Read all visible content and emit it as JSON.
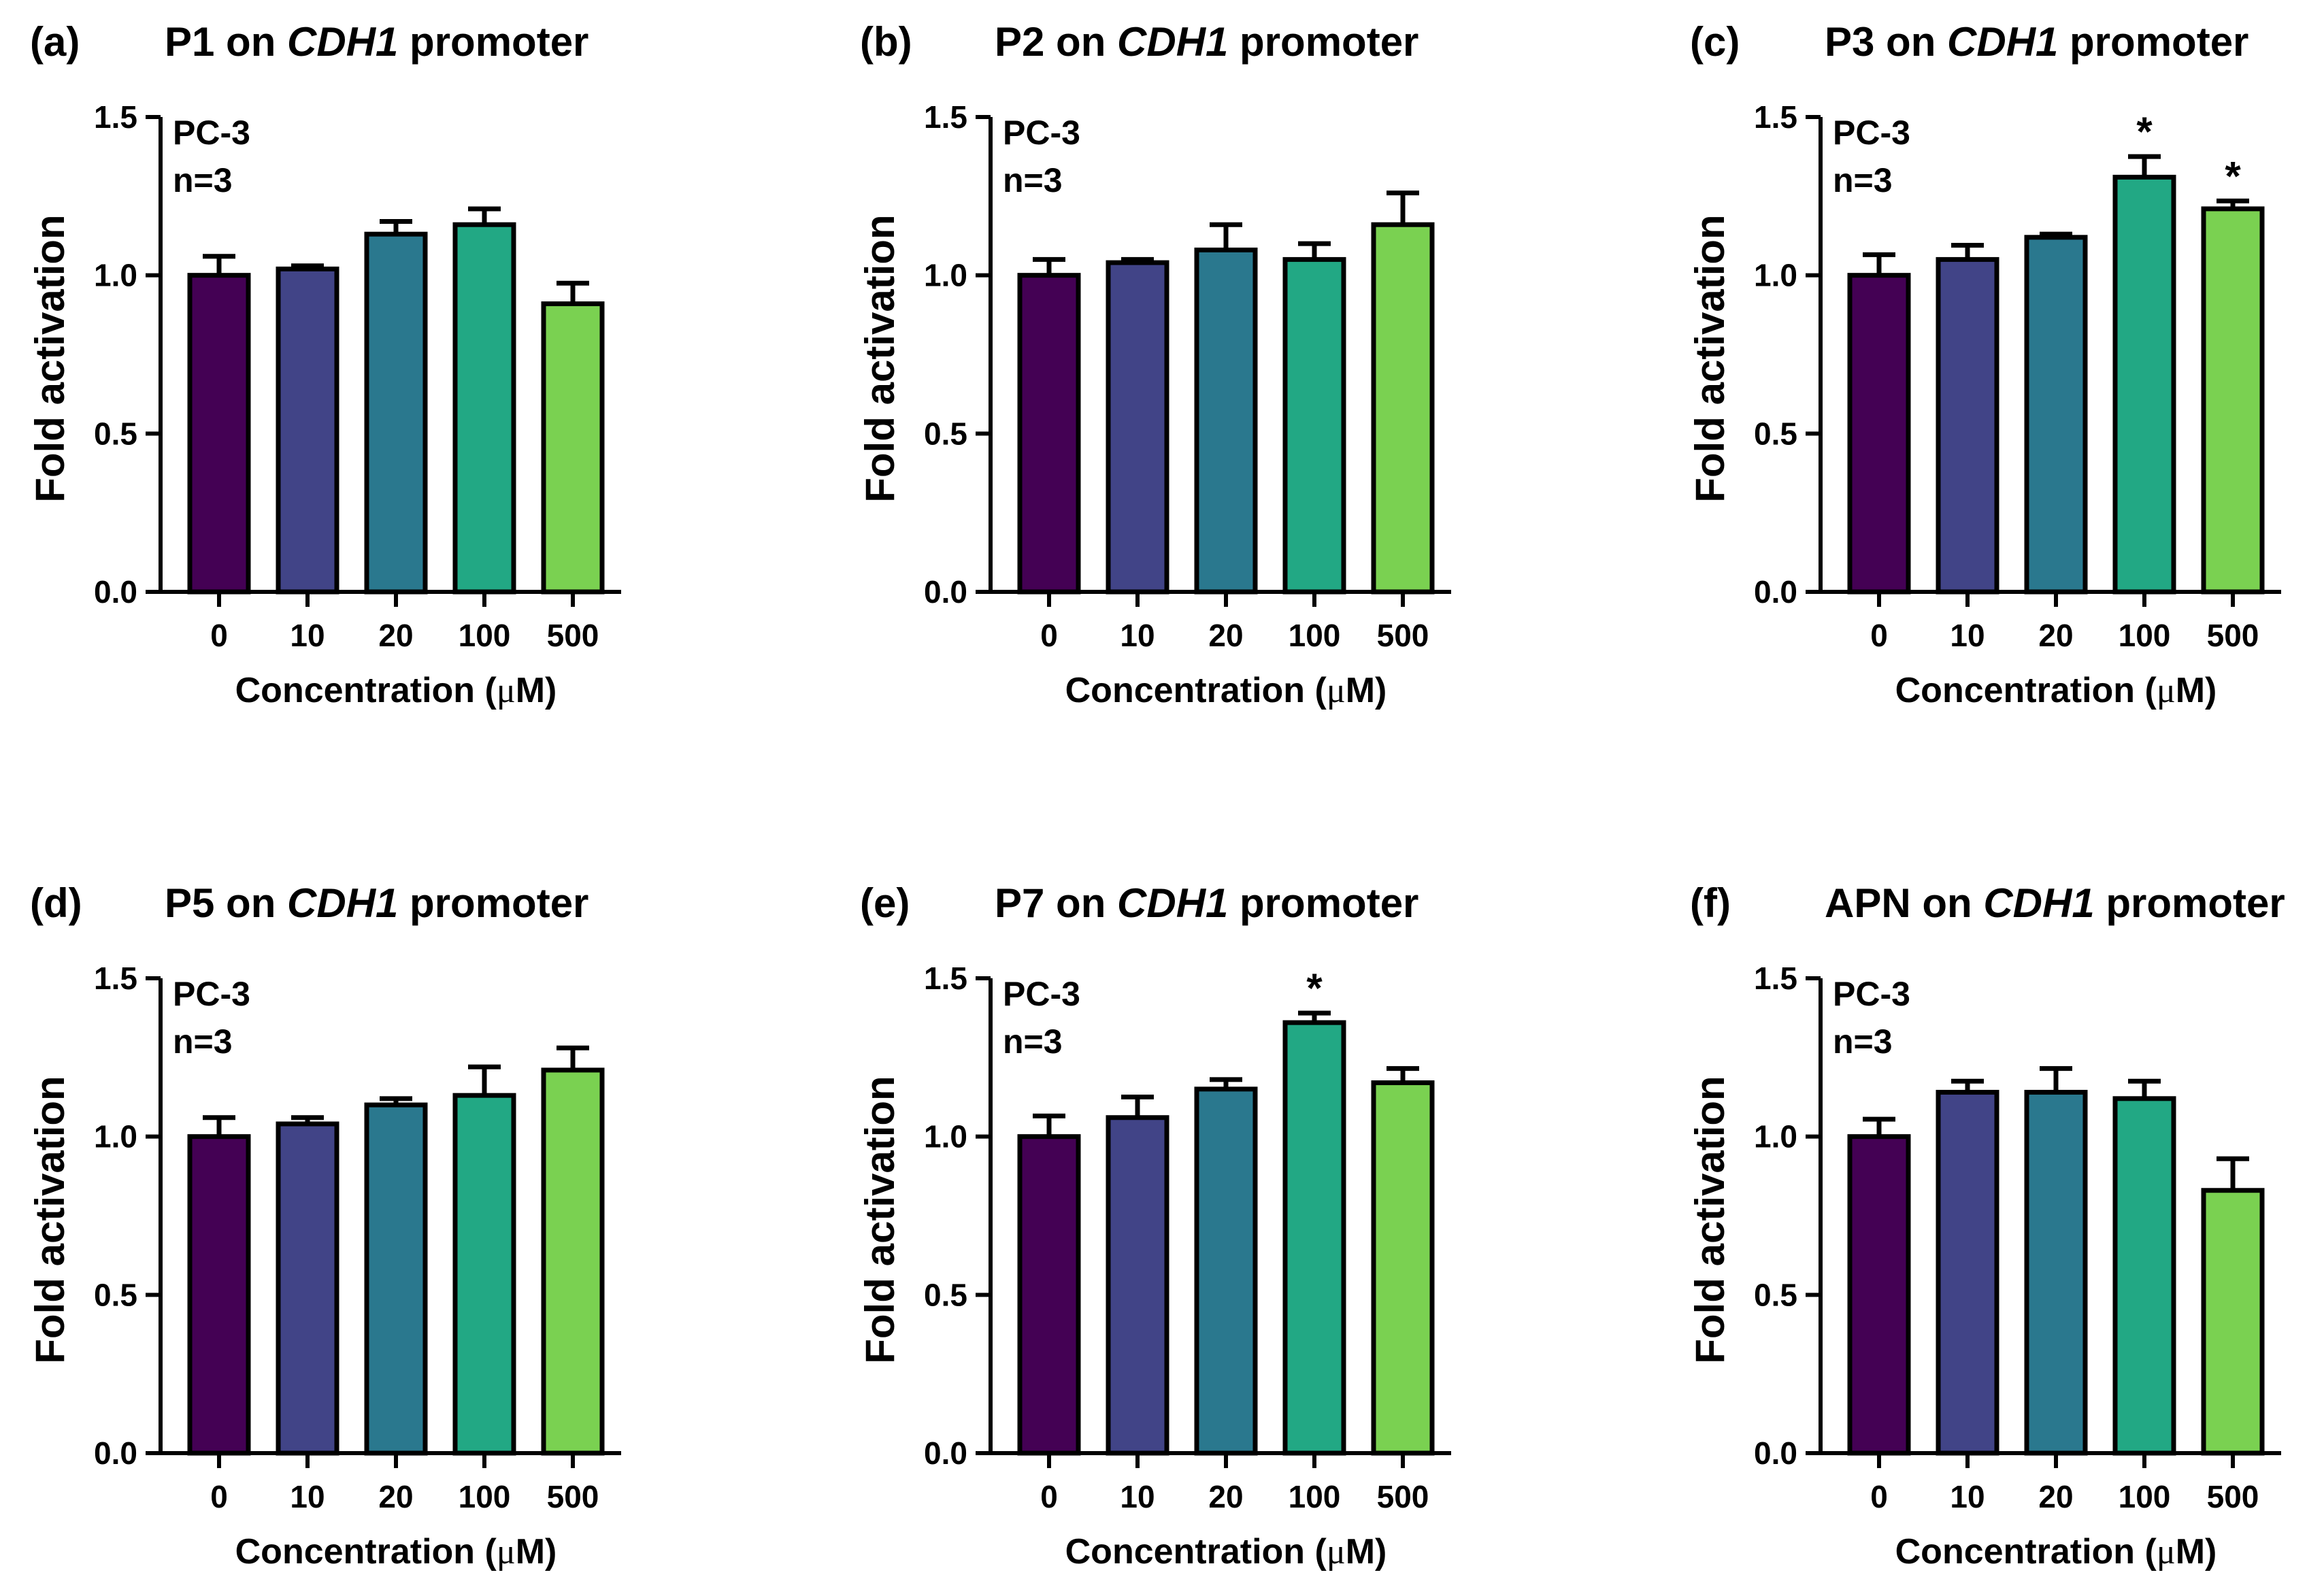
{
  "chart_data": [
    {
      "panel": "(a)",
      "title": {
        "pre": "P1 on ",
        "gene": "CDH1",
        "post": " promoter"
      },
      "type": "bar",
      "categories": [
        "0",
        "10",
        "20",
        "100",
        "500"
      ],
      "values": [
        1.0,
        1.02,
        1.13,
        1.16,
        0.91
      ],
      "errors": [
        0.06,
        0.01,
        0.04,
        0.05,
        0.065
      ],
      "significance": [
        "",
        "",
        "",
        "",
        ""
      ],
      "cell_line": "PC-3",
      "n_label": "n=3",
      "xlabel": {
        "pre": "Concentration (",
        "mu": "μ",
        "post": "M)"
      },
      "ylabel": "Fold activation",
      "ylim": [
        0,
        1.5
      ],
      "yticks": [
        "0.0",
        "0.5",
        "1.0",
        "1.5"
      ]
    },
    {
      "panel": "(b)",
      "title": {
        "pre": "P2 on ",
        "gene": "CDH1",
        "post": " promoter"
      },
      "type": "bar",
      "categories": [
        "0",
        "10",
        "20",
        "100",
        "500"
      ],
      "values": [
        1.0,
        1.04,
        1.08,
        1.05,
        1.16
      ],
      "errors": [
        0.05,
        0.01,
        0.08,
        0.05,
        0.1
      ],
      "significance": [
        "",
        "",
        "",
        "",
        ""
      ],
      "cell_line": "PC-3",
      "n_label": "n=3",
      "xlabel": {
        "pre": "Concentration (",
        "mu": "μ",
        "post": "M)"
      },
      "ylabel": "Fold activation",
      "ylim": [
        0,
        1.5
      ],
      "yticks": [
        "0.0",
        "0.5",
        "1.0",
        "1.5"
      ]
    },
    {
      "panel": "(c)",
      "title": {
        "pre": "P3 on ",
        "gene": "CDH1",
        "post": " promoter"
      },
      "type": "bar",
      "categories": [
        "0",
        "10",
        "20",
        "100",
        "500"
      ],
      "values": [
        1.0,
        1.05,
        1.12,
        1.31,
        1.21
      ],
      "errors": [
        0.065,
        0.045,
        0.01,
        0.065,
        0.025
      ],
      "significance": [
        "",
        "",
        "",
        "*",
        "*"
      ],
      "cell_line": "PC-3",
      "n_label": "n=3",
      "xlabel": {
        "pre": "Concentration (",
        "mu": "μ",
        "post": "M)"
      },
      "ylabel": "Fold activation",
      "ylim": [
        0,
        1.5
      ],
      "yticks": [
        "0.0",
        "0.5",
        "1.0",
        "1.5"
      ]
    },
    {
      "panel": "(d)",
      "title": {
        "pre": "P5 on ",
        "gene": "CDH1",
        "post": " promoter"
      },
      "type": "bar",
      "categories": [
        "0",
        "10",
        "20",
        "100",
        "500"
      ],
      "values": [
        1.0,
        1.04,
        1.1,
        1.13,
        1.21
      ],
      "errors": [
        0.06,
        0.02,
        0.02,
        0.09,
        0.07
      ],
      "significance": [
        "",
        "",
        "",
        "",
        ""
      ],
      "cell_line": "PC-3",
      "n_label": "n=3",
      "xlabel": {
        "pre": "Concentration (",
        "mu": "μ",
        "post": "M)"
      },
      "ylabel": "Fold activation",
      "ylim": [
        0,
        1.5
      ],
      "yticks": [
        "0.0",
        "0.5",
        "1.0",
        "1.5"
      ]
    },
    {
      "panel": "(e)",
      "title": {
        "pre": "P7 on ",
        "gene": "CDH1",
        "post": " promoter"
      },
      "type": "bar",
      "categories": [
        "0",
        "10",
        "20",
        "100",
        "500"
      ],
      "values": [
        1.0,
        1.06,
        1.15,
        1.36,
        1.17
      ],
      "errors": [
        0.065,
        0.065,
        0.03,
        0.03,
        0.045
      ],
      "significance": [
        "",
        "",
        "",
        "*",
        ""
      ],
      "cell_line": "PC-3",
      "n_label": "n=3",
      "xlabel": {
        "pre": "Concentration (",
        "mu": "μ",
        "post": "M)"
      },
      "ylabel": "Fold activation",
      "ylim": [
        0,
        1.5
      ],
      "yticks": [
        "0.0",
        "0.5",
        "1.0",
        "1.5"
      ]
    },
    {
      "panel": "(f)",
      "title": {
        "pre": "APN on ",
        "gene": "CDH1",
        "post": " promoter"
      },
      "type": "bar",
      "categories": [
        "0",
        "10",
        "20",
        "100",
        "500"
      ],
      "values": [
        1.0,
        1.14,
        1.14,
        1.12,
        0.83
      ],
      "errors": [
        0.055,
        0.035,
        0.075,
        0.055,
        0.1
      ],
      "significance": [
        "",
        "",
        "",
        "",
        ""
      ],
      "cell_line": "PC-3",
      "n_label": "n=3",
      "xlabel": {
        "pre": "Concentration (",
        "mu": "μ",
        "post": "M)"
      },
      "ylabel": "Fold activation",
      "ylim": [
        0,
        1.5
      ],
      "yticks": [
        "0.0",
        "0.5",
        "1.0",
        "1.5"
      ]
    }
  ],
  "colors": [
    "#440154",
    "#414487",
    "#2a788e",
    "#22a884",
    "#7ad151"
  ]
}
